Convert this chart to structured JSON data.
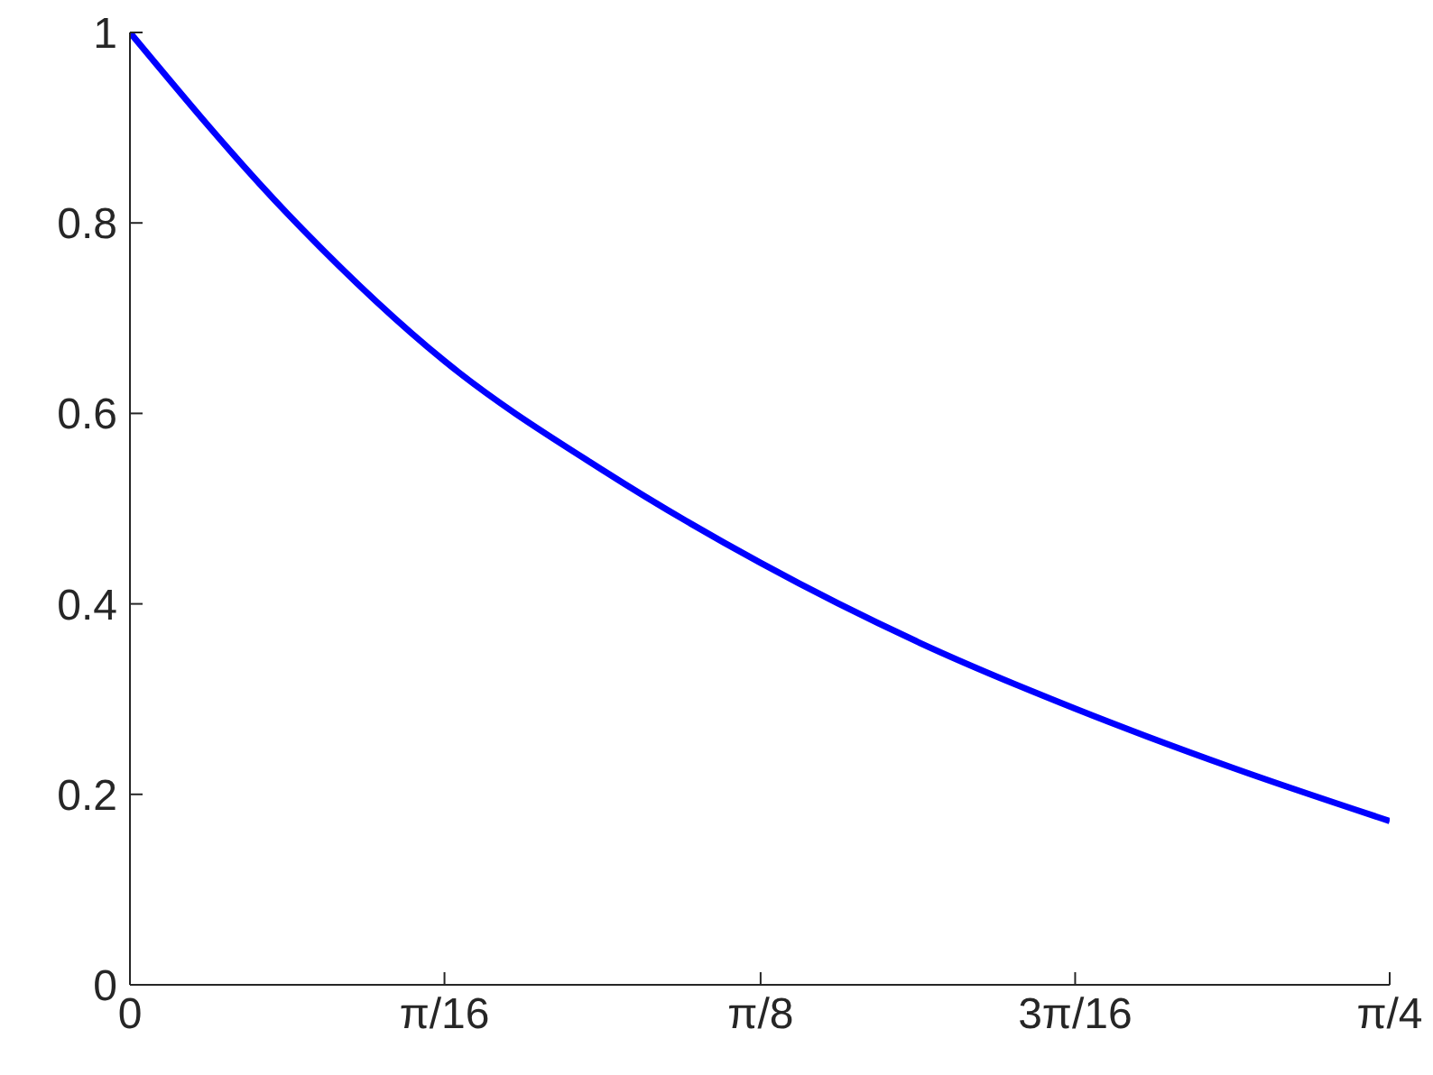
{
  "chart_data": {
    "type": "line",
    "x": [
      0,
      0.098,
      0.196,
      0.295,
      0.393,
      0.491,
      0.589,
      0.687,
      0.785
    ],
    "series": [
      {
        "color": "#0000ff",
        "values": [
          1,
          0.81,
          0.655,
          0.54,
          0.443,
          0.36,
          0.29,
          0.228,
          0.172
        ]
      }
    ],
    "xlim": [
      0,
      0.785
    ],
    "xticks": [
      0,
      {
        "value": 0.196,
        "label": "π/16"
      },
      {
        "value": 0.393,
        "label": "π/8"
      },
      {
        "value": 0.589,
        "label": "3π/16"
      },
      {
        "value": 0.785,
        "label": "π/4"
      }
    ],
    "ylim": [
      0,
      1
    ],
    "yticks": [
      0,
      0.2,
      0.4,
      0.6,
      0.8,
      1
    ],
    "grid": false,
    "legend": false,
    "marker": "none",
    "line_style": "solid"
  }
}
